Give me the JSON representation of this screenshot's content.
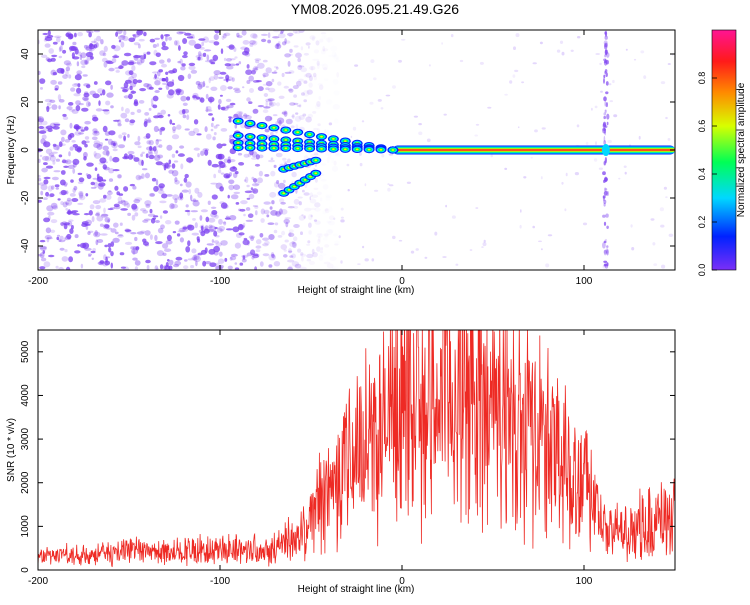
{
  "page_title": "YM08.2026.095.21.49.G26",
  "colors": {
    "snr_line": "#ee2a24",
    "track": "#ff2a2a",
    "noise": "#7a3df0",
    "axis": "#000000"
  },
  "chart_data": [
    {
      "type": "heatmap",
      "name": "spectrogram",
      "title": "YM08.2026.095.21.49.G26",
      "xlabel": "Height of straight line (km)",
      "ylabel": "Frequency (Hz)",
      "xlim": [
        -200,
        150
      ],
      "ylim": [
        -50,
        50
      ],
      "xticks": [
        -200,
        -100,
        0,
        100
      ],
      "yticks": [
        -40,
        -20,
        0,
        20,
        40
      ],
      "colorbar": {
        "label": "Normalized spectral amplitude",
        "range": [
          0,
          1
        ],
        "ticks": [
          0.0,
          0.2,
          0.4,
          0.6,
          0.8
        ],
        "stops": [
          "#7b2ff7",
          "#0022ff",
          "#00d8ff",
          "#00ff55",
          "#d8ff00",
          "#ff8a00",
          "#ff1a1a",
          "#ff1493"
        ]
      },
      "features": {
        "noise_region_km": [
          -200,
          -65
        ],
        "track_frequency_hz": 0,
        "track_start_km": -5,
        "converging_tracks_km": [
          -90,
          -5
        ],
        "converging_track_freq_hz": [
          12,
          6,
          3,
          1,
          -8,
          -18
        ],
        "vertical_artifact_km": 112
      }
    },
    {
      "type": "line",
      "name": "snr",
      "xlabel": "Height of straight line (km)",
      "ylabel": "SNR (10 * v/v)",
      "xlim": [
        -200,
        150
      ],
      "ylim": [
        0,
        5500
      ],
      "xticks": [
        -200,
        -100,
        0,
        100
      ],
      "yticks": [
        0,
        1000,
        2000,
        3000,
        4000,
        5000
      ],
      "envelope": {
        "x": [
          -200,
          -150,
          -100,
          -70,
          -55,
          -40,
          -25,
          0,
          25,
          40,
          60,
          80,
          100,
          112,
          130,
          150
        ],
        "y": [
          300,
          400,
          450,
          500,
          800,
          1900,
          2800,
          3600,
          4000,
          4000,
          3300,
          2800,
          2100,
          800,
          1000,
          1200
        ]
      }
    }
  ]
}
